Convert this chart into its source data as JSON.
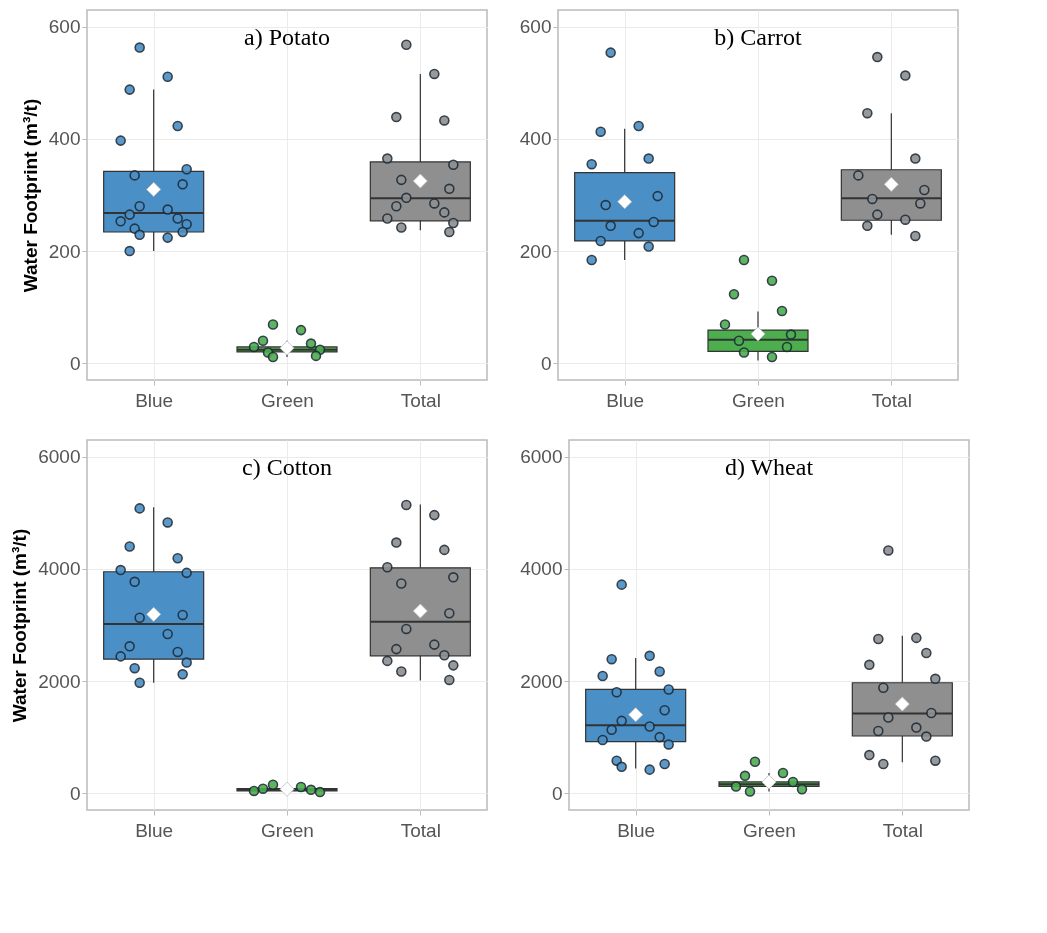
{
  "chart_data": [
    {
      "type": "box",
      "title": "a) Potato",
      "ylabel": "Water Footprint (m³/t)",
      "categories": [
        "Blue",
        "Green",
        "Total"
      ],
      "colors": [
        "#4a8fc6",
        "#4cae4c",
        "#8f8f8f"
      ],
      "ylim": [
        -30,
        630
      ],
      "yticks": [
        0,
        200,
        400,
        600
      ],
      "grid": true,
      "marker": "circle",
      "boxes": [
        {
          "low": 200,
          "q1": 234,
          "median": 268,
          "q3": 342,
          "high": 488,
          "mean": 310
        },
        {
          "low": 11,
          "q1": 20,
          "median": 24,
          "q3": 29,
          "high": 40,
          "mean": 27
        },
        {
          "low": 237,
          "q1": 254,
          "median": 294,
          "q3": 359,
          "high": 516,
          "mean": 325
        }
      ],
      "series": [
        {
          "type": "scatter",
          "color": "#4a8fc6",
          "x": [
            "Blue",
            "Blue",
            "Blue",
            "Blue",
            "Blue",
            "Blue",
            "Blue",
            "Blue",
            "Blue",
            "Blue",
            "Blue",
            "Blue",
            "Blue",
            "Blue",
            "Blue",
            "Blue",
            "Blue",
            "Blue",
            "Blue"
          ],
          "values": [
            563,
            511,
            488,
            423,
            397,
            346,
            335,
            319,
            280,
            274,
            265,
            258,
            253,
            248,
            240,
            234,
            229,
            224,
            200
          ]
        },
        {
          "type": "scatter",
          "color": "#4cae4c",
          "x": [
            "Green",
            "Green",
            "Green",
            "Green",
            "Green",
            "Green",
            "Green",
            "Green",
            "Green"
          ],
          "values": [
            69,
            59,
            40,
            35,
            29,
            24,
            19,
            13,
            11
          ]
        },
        {
          "type": "scatter",
          "color": "#8f8f8f",
          "x": [
            "Total",
            "Total",
            "Total",
            "Total",
            "Total",
            "Total",
            "Total",
            "Total",
            "Total",
            "Total",
            "Total",
            "Total",
            "Total",
            "Total",
            "Total",
            "Total"
          ],
          "values": [
            568,
            516,
            439,
            433,
            365,
            354,
            327,
            311,
            295,
            285,
            280,
            269,
            258,
            250,
            242,
            234
          ]
        }
      ]
    },
    {
      "type": "box",
      "title": "b) Carrot",
      "categories": [
        "Blue",
        "Green",
        "Total"
      ],
      "colors": [
        "#4a8fc6",
        "#4cae4c",
        "#8f8f8f"
      ],
      "ylim": [
        -30,
        630
      ],
      "yticks": [
        0,
        200,
        400,
        600
      ],
      "grid": true,
      "marker": "circle",
      "boxes": [
        {
          "low": 184,
          "q1": 218,
          "median": 254,
          "q3": 340,
          "high": 418,
          "mean": 288
        },
        {
          "low": 5,
          "q1": 21,
          "median": 42,
          "q3": 59,
          "high": 92,
          "mean": 52
        },
        {
          "low": 229,
          "q1": 255,
          "median": 294,
          "q3": 345,
          "high": 446,
          "mean": 319
        }
      ],
      "series": [
        {
          "type": "scatter",
          "color": "#4a8fc6",
          "x": [
            "Blue",
            "Blue",
            "Blue",
            "Blue",
            "Blue",
            "Blue",
            "Blue",
            "Blue",
            "Blue",
            "Blue",
            "Blue",
            "Blue",
            "Blue"
          ],
          "values": [
            554,
            423,
            413,
            365,
            355,
            298,
            282,
            252,
            245,
            232,
            218,
            208,
            184
          ]
        },
        {
          "type": "scatter",
          "color": "#4cae4c",
          "x": [
            "Green",
            "Green",
            "Green",
            "Green",
            "Green",
            "Green",
            "Green",
            "Green",
            "Green",
            "Green"
          ],
          "values": [
            184,
            147,
            123,
            93,
            69,
            51,
            40,
            29,
            19,
            11
          ]
        },
        {
          "type": "scatter",
          "color": "#8f8f8f",
          "x": [
            "Total",
            "Total",
            "Total",
            "Total",
            "Total",
            "Total",
            "Total",
            "Total",
            "Total",
            "Total",
            "Total",
            "Total"
          ],
          "values": [
            546,
            513,
            446,
            365,
            335,
            309,
            293,
            285,
            265,
            256,
            245,
            227
          ]
        }
      ]
    },
    {
      "type": "box",
      "title": "c) Cotton",
      "ylabel": "Water Footprint (m³/t)",
      "categories": [
        "Blue",
        "Green",
        "Total"
      ],
      "colors": [
        "#4a8fc6",
        "#4cae4c",
        "#8f8f8f"
      ],
      "ylim": [
        -300,
        6300
      ],
      "yticks": [
        0,
        2000,
        4000,
        6000
      ],
      "grid": true,
      "marker": "circle",
      "boxes": [
        {
          "low": 1970,
          "q1": 2390,
          "median": 3020,
          "q3": 3950,
          "high": 5100,
          "mean": 3190
        },
        {
          "low": 20,
          "q1": 40,
          "median": 60,
          "q3": 80,
          "high": 150,
          "mean": 70
        },
        {
          "low": 2010,
          "q1": 2450,
          "median": 3060,
          "q3": 4020,
          "high": 5150,
          "mean": 3250
        }
      ],
      "series": [
        {
          "type": "scatter",
          "color": "#4a8fc6",
          "x": [
            "Blue",
            "Blue",
            "Blue",
            "Blue",
            "Blue",
            "Blue",
            "Blue",
            "Blue",
            "Blue",
            "Blue",
            "Blue",
            "Blue",
            "Blue",
            "Blue",
            "Blue",
            "Blue",
            "Blue"
          ],
          "values": [
            5080,
            4830,
            4400,
            4190,
            3980,
            3930,
            3770,
            3180,
            3130,
            2840,
            2620,
            2520,
            2440,
            2330,
            2230,
            2120,
            1970
          ]
        },
        {
          "type": "scatter",
          "color": "#4cae4c",
          "x": [
            "Green",
            "Green",
            "Green",
            "Green",
            "Green",
            "Green"
          ],
          "values": [
            150,
            110,
            80,
            60,
            40,
            20
          ]
        },
        {
          "type": "scatter",
          "color": "#8f8f8f",
          "x": [
            "Total",
            "Total",
            "Total",
            "Total",
            "Total",
            "Total",
            "Total",
            "Total",
            "Total",
            "Total",
            "Total",
            "Total",
            "Total",
            "Total",
            "Total",
            "Total"
          ],
          "values": [
            5140,
            4960,
            4470,
            4340,
            4030,
            3850,
            3740,
            3210,
            2930,
            2650,
            2570,
            2460,
            2360,
            2280,
            2170,
            2020
          ]
        }
      ]
    },
    {
      "type": "box",
      "title": "d) Wheat",
      "categories": [
        "Blue",
        "Green",
        "Total"
      ],
      "colors": [
        "#4a8fc6",
        "#4cae4c",
        "#8f8f8f"
      ],
      "ylim": [
        -300,
        6300
      ],
      "yticks": [
        0,
        2000,
        4000,
        6000
      ],
      "grid": true,
      "marker": "circle",
      "boxes": [
        {
          "low": 440,
          "q1": 920,
          "median": 1210,
          "q3": 1850,
          "high": 2410,
          "mean": 1400
        },
        {
          "low": 30,
          "q1": 120,
          "median": 160,
          "q3": 200,
          "high": 360,
          "mean": 200
        },
        {
          "low": 550,
          "q1": 1020,
          "median": 1420,
          "q3": 1970,
          "high": 2810,
          "mean": 1590
        }
      ],
      "series": [
        {
          "type": "scatter",
          "color": "#4a8fc6",
          "x": [
            "Blue",
            "Blue",
            "Blue",
            "Blue",
            "Blue",
            "Blue",
            "Blue",
            "Blue",
            "Blue",
            "Blue",
            "Blue",
            "Blue",
            "Blue",
            "Blue",
            "Blue",
            "Blue",
            "Blue",
            "Blue"
          ],
          "values": [
            3720,
            2450,
            2390,
            2170,
            2090,
            1850,
            1800,
            1480,
            1290,
            1190,
            1130,
            1000,
            950,
            870,
            580,
            520,
            470,
            420
          ]
        },
        {
          "type": "scatter",
          "color": "#4cae4c",
          "x": [
            "Green",
            "Green",
            "Green",
            "Green",
            "Green",
            "Green",
            "Green"
          ],
          "values": [
            560,
            360,
            310,
            200,
            120,
            70,
            30
          ]
        },
        {
          "type": "scatter",
          "color": "#8f8f8f",
          "x": [
            "Total",
            "Total",
            "Total",
            "Total",
            "Total",
            "Total",
            "Total",
            "Total",
            "Total",
            "Total",
            "Total",
            "Total",
            "Total",
            "Total",
            "Total"
          ],
          "values": [
            4330,
            2770,
            2750,
            2500,
            2290,
            2040,
            1880,
            1430,
            1350,
            1170,
            1110,
            1010,
            680,
            580,
            520
          ]
        }
      ]
    }
  ]
}
